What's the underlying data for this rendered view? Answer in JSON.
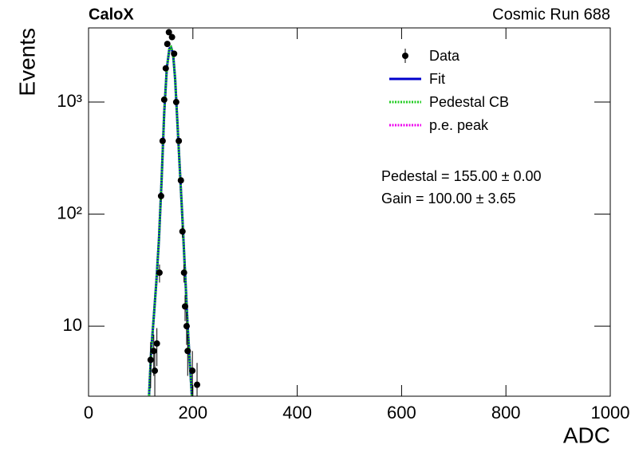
{
  "chart_data": {
    "type": "scatter",
    "title": "CaloX",
    "subtitle": "Cosmic Run 688",
    "x_label": "ADC",
    "y_label": "Events",
    "log_y": true,
    "xlim": [
      0,
      1000
    ],
    "xticks": [
      0,
      200,
      400,
      600,
      800,
      1000
    ],
    "ylim": [
      2.37,
      4590
    ],
    "yticks": [
      10,
      {
        "value": 100,
        "label": "10²"
      },
      {
        "value": 1000,
        "label": "10³"
      }
    ],
    "annotations": [
      "Pedestal = 155.00 ± 0.00",
      "Gain = 100.00 ± 3.65"
    ],
    "series": [
      {
        "name": "Data",
        "color": "#000000",
        "x": [
          119,
          125,
          127,
          131,
          136,
          139,
          142,
          145,
          148,
          151,
          154,
          160,
          164,
          168,
          173,
          177,
          180,
          183,
          185,
          188,
          190,
          199,
          208
        ],
        "values": [
          5,
          6,
          4,
          7,
          30,
          145,
          450,
          1050,
          2000,
          3300,
          4200,
          3800,
          2700,
          1000,
          450,
          200,
          70,
          30,
          15,
          10,
          6,
          4,
          3
        ],
        "errors": [
          2.2,
          2.4,
          2,
          2.6,
          5.5,
          12,
          21,
          32,
          45,
          57,
          65,
          62,
          52,
          32,
          21,
          14,
          8.4,
          5.5,
          3.9,
          3.2,
          2.4,
          2,
          1.7
        ]
      }
    ],
    "curves": [
      {
        "name": "Fit",
        "color": "#0000cc",
        "style": "solid",
        "x": [
          116,
          120,
          125,
          130,
          135,
          140,
          145,
          150,
          155,
          158,
          162,
          166,
          170,
          175,
          180,
          185,
          190,
          195,
          198
        ],
        "values": [
          2.4,
          6,
          12,
          25,
          60,
          200,
          800,
          2000,
          3000,
          3100,
          2700,
          1600,
          700,
          250,
          90,
          30,
          10,
          4,
          2.4
        ]
      },
      {
        "name": "Pedestal CB",
        "color": "#22cc22",
        "style": "dotted",
        "x": [
          116,
          120,
          125,
          130,
          135,
          140,
          145,
          150,
          155,
          158,
          162,
          166,
          170,
          175,
          180,
          185,
          190,
          195,
          198
        ],
        "values": [
          2.4,
          6,
          12,
          25,
          60,
          200,
          800,
          2000,
          3000,
          3100,
          2700,
          1600,
          700,
          250,
          90,
          30,
          10,
          4,
          2.4
        ]
      },
      {
        "name": "p.e. peak",
        "color": "#ee00ee",
        "style": "dotted",
        "x": [],
        "values": []
      }
    ]
  }
}
